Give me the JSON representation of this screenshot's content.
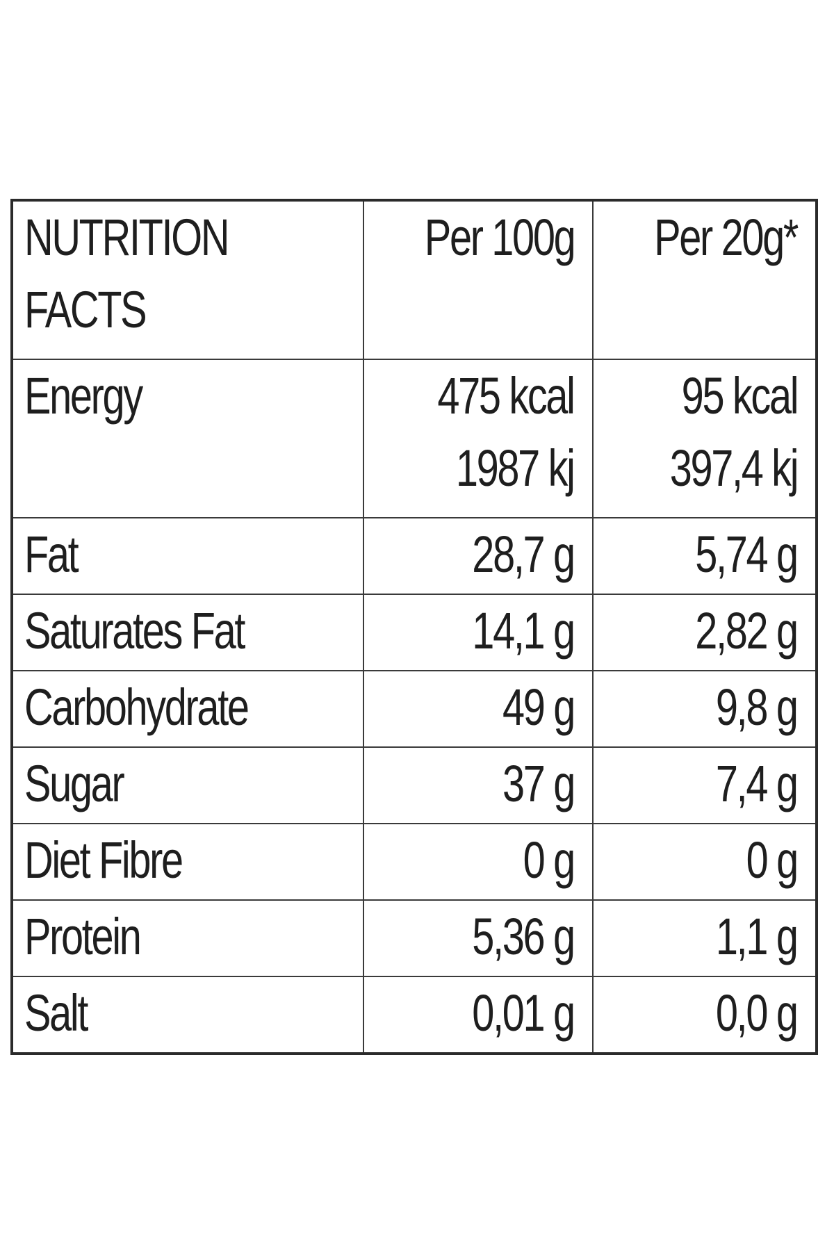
{
  "table": {
    "header": {
      "name_line1": "NUTRITION",
      "name_line2": "FACTS",
      "col_a": "Per 100g",
      "col_b": "Per 20g*"
    },
    "energy": {
      "name": "Energy",
      "a_line1": "475 kcal",
      "a_line2": "1987 kj",
      "b_line1": "95 kcal",
      "b_line2": "397,4 kj"
    },
    "rows": [
      {
        "name": "Fat",
        "a": "28,7 g",
        "b": "5,74 g"
      },
      {
        "name": "Saturates Fat",
        "a": "14,1 g",
        "b": "2,82 g"
      },
      {
        "name": "Carbohydrate",
        "a": "49 g",
        "b": "9,8 g"
      },
      {
        "name": "Sugar",
        "a": "37 g",
        "b": "7,4 g"
      },
      {
        "name": "Diet Fibre",
        "a": "0 g",
        "b": "0 g"
      },
      {
        "name": "Protein",
        "a": "5,36 g",
        "b": "1,1 g"
      },
      {
        "name": "Salt",
        "a": "0,01 g",
        "b": "0,0 g"
      }
    ]
  }
}
